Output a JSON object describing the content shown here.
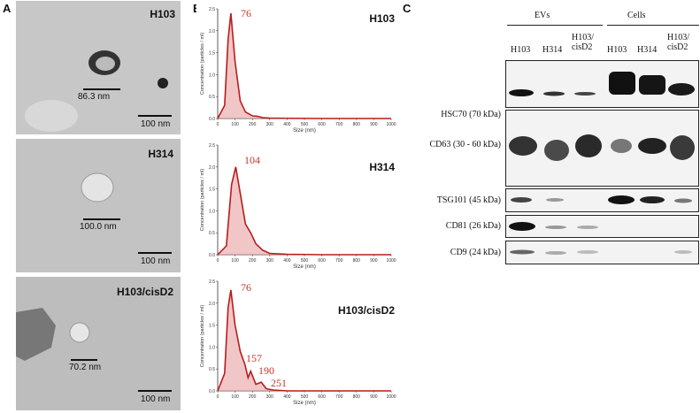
{
  "panels": {
    "a": "A",
    "b": "B",
    "c": "C"
  },
  "em": [
    {
      "label": "H103",
      "size": "86.3 nm",
      "scale": "100 nm"
    },
    {
      "label": "H314",
      "size": "100.0 nm",
      "scale": "100 nm"
    },
    {
      "label": "H103/cisD2",
      "size": "70.2 nm",
      "scale": "100 nm"
    }
  ],
  "nta_axes": {
    "xlabel": "Size (nm)",
    "ylabel": "Concentration (particles / ml)"
  },
  "chart_data": [
    {
      "type": "line",
      "title": "H103",
      "xlabel": "Size (nm)",
      "ylabel": "Concentration (particles / ml)",
      "xlim": [
        0,
        1000
      ],
      "ylim": [
        0,
        2.5
      ],
      "x": [
        0,
        40,
        60,
        76,
        100,
        130,
        160,
        200,
        230,
        260,
        300,
        400,
        600,
        1000
      ],
      "values": [
        0,
        0.3,
        1.8,
        2.4,
        1.3,
        0.4,
        0.15,
        0.06,
        0.05,
        0.02,
        0.01,
        0.005,
        0,
        0
      ],
      "annotations": [
        "76"
      ]
    },
    {
      "type": "line",
      "title": "H314",
      "xlabel": "Size (nm)",
      "ylabel": "Concentration (particles / ml)",
      "xlim": [
        0,
        1000
      ],
      "ylim": [
        0,
        2.5
      ],
      "x": [
        0,
        50,
        80,
        104,
        130,
        160,
        190,
        220,
        260,
        300,
        400,
        600,
        1000
      ],
      "values": [
        0,
        0.2,
        1.6,
        2.0,
        1.4,
        0.7,
        0.5,
        0.25,
        0.1,
        0.03,
        0.01,
        0,
        0
      ],
      "annotations": [
        "104"
      ]
    },
    {
      "type": "line",
      "title": "H103/cisD2",
      "xlabel": "Size (nm)",
      "ylabel": "Concentration (particles / ml)",
      "xlim": [
        0,
        1000
      ],
      "ylim": [
        0,
        2.5
      ],
      "x": [
        0,
        40,
        60,
        76,
        100,
        130,
        157,
        175,
        190,
        220,
        251,
        280,
        320,
        400,
        1000
      ],
      "values": [
        0,
        0.4,
        1.9,
        2.3,
        1.5,
        0.9,
        0.6,
        0.3,
        0.45,
        0.15,
        0.2,
        0.05,
        0.02,
        0,
        0
      ],
      "annotations": [
        "76",
        "157",
        "190",
        "251"
      ]
    }
  ],
  "wb": {
    "groups": [
      "EVs",
      "Cells"
    ],
    "lanes": [
      "H103",
      "H314",
      "H103/\ncisD2",
      "H103",
      "H314",
      "H103/\ncisD2"
    ],
    "markers": [
      "HSC70 (70 kDa)",
      "CD63 (30 - 60 kDa)",
      "TSG101 (45 kDa)",
      "CD81 (26 kDa)",
      "CD9 (24 kDa)"
    ]
  }
}
